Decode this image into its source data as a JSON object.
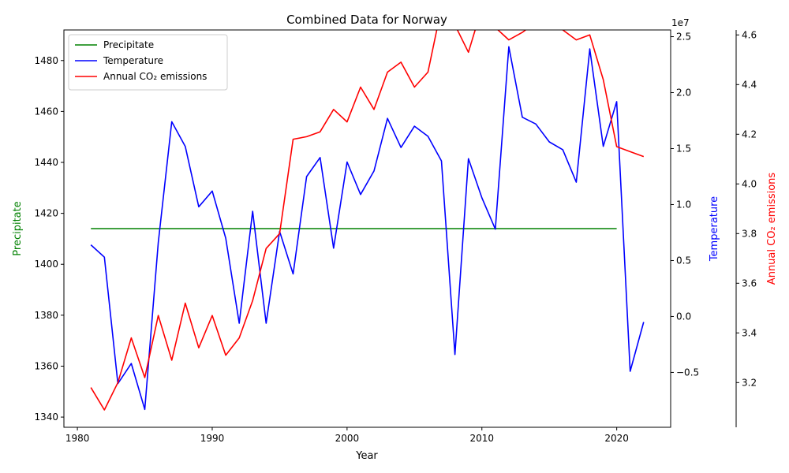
{
  "chart_data": {
    "type": "line",
    "title": "Combined Data for Norway",
    "xlabel": "Year",
    "xlim": [
      1979,
      2024
    ],
    "x_ticks": [
      1980,
      1990,
      2000,
      2010,
      2020
    ],
    "axes": {
      "precipitate": {
        "label": "Precipitate",
        "color": "#008000",
        "ylim": [
          1336,
          1492
        ],
        "ticks": [
          1340,
          1360,
          1380,
          1400,
          1420,
          1440,
          1460,
          1480
        ]
      },
      "temperature": {
        "label": "Temperature",
        "color": "#0000ff",
        "ylim": [
          -0.99,
          2.56
        ],
        "ticks": [
          -0.5,
          0.0,
          0.5,
          1.0,
          1.5,
          2.0,
          2.5
        ],
        "tick_labels": [
          "−0.5",
          "0.0",
          "0.5",
          "1.0",
          "1.5",
          "2.0",
          "2.5"
        ],
        "offset_text": "1e7"
      },
      "co2": {
        "label": "Annual CO₂ emissions",
        "color": "#ff0000",
        "ylim": [
          3.02,
          4.62
        ],
        "ticks": [
          3.2,
          3.4,
          3.6,
          3.8,
          4.0,
          4.2,
          4.4,
          4.6
        ]
      }
    },
    "legend_position": "top-left",
    "series": [
      {
        "name": "Precipitate",
        "axis": "precipitate",
        "x": [
          1981,
          1982,
          1983,
          1984,
          1985,
          1986,
          1987,
          1988,
          1989,
          1990,
          1991,
          1992,
          1993,
          1994,
          1995,
          1996,
          1997,
          1998,
          1999,
          2000,
          2001,
          2002,
          2003,
          2004,
          2005,
          2006,
          2007,
          2008,
          2009,
          2010,
          2011,
          2012,
          2013,
          2014,
          2015,
          2016,
          2017,
          2018,
          2019,
          2020
        ],
        "y": [
          1414,
          1414,
          1414,
          1414,
          1414,
          1414,
          1414,
          1414,
          1414,
          1414,
          1414,
          1414,
          1414,
          1414,
          1414,
          1414,
          1414,
          1414,
          1414,
          1414,
          1414,
          1414,
          1414,
          1414,
          1414,
          1414,
          1414,
          1414,
          1414,
          1414,
          1414,
          1414,
          1414,
          1414,
          1414,
          1414,
          1414,
          1414,
          1414,
          1414
        ]
      },
      {
        "name": "Temperature",
        "axis": "temperature",
        "x": [
          1981,
          1982,
          1983,
          1984,
          1985,
          1986,
          1987,
          1988,
          1989,
          1990,
          1991,
          1992,
          1993,
          1994,
          1995,
          1996,
          1997,
          1998,
          1999,
          2000,
          2001,
          2002,
          2003,
          2004,
          2005,
          2006,
          2007,
          2008,
          2009,
          2010,
          2011,
          2012,
          2013,
          2014,
          2015,
          2016,
          2017,
          2018,
          2019,
          2020,
          2021,
          2022
        ],
        "y": [
          0.64,
          0.53,
          -0.6,
          -0.42,
          -0.83,
          0.66,
          1.74,
          1.52,
          0.98,
          1.12,
          0.7,
          -0.06,
          0.94,
          -0.06,
          0.76,
          0.38,
          1.25,
          1.42,
          0.61,
          1.38,
          1.09,
          1.3,
          1.77,
          1.51,
          1.7,
          1.61,
          1.39,
          -0.34,
          1.41,
          1.06,
          0.78,
          2.41,
          1.78,
          1.72,
          1.56,
          1.49,
          1.2,
          2.39,
          1.52,
          1.92,
          -0.49,
          -0.05
        ]
      },
      {
        "name": "Annual CO₂ emissions",
        "axis": "co2",
        "x": [
          1981,
          1982,
          1983,
          1984,
          1985,
          1986,
          1987,
          1988,
          1989,
          1990,
          1991,
          1992,
          1993,
          1994,
          1995,
          1996,
          1997,
          1998,
          1999,
          2000,
          2001,
          2002,
          2003,
          2004,
          2005,
          2006,
          2007,
          2008,
          2009,
          2010,
          2011,
          2012,
          2013,
          2014,
          2015,
          2016,
          2017,
          2018,
          2019,
          2020,
          2021,
          2022
        ],
        "y": [
          3.18,
          3.09,
          3.2,
          3.38,
          3.22,
          3.47,
          3.29,
          3.52,
          3.34,
          3.47,
          3.31,
          3.38,
          3.53,
          3.74,
          3.8,
          4.18,
          4.19,
          4.21,
          4.3,
          4.25,
          4.39,
          4.3,
          4.45,
          4.49,
          4.39,
          4.45,
          4.71,
          4.64,
          4.53,
          4.71,
          4.63,
          4.58,
          4.61,
          4.65,
          4.69,
          4.62,
          4.58,
          4.6,
          4.42,
          4.15,
          4.13,
          4.11
        ]
      }
    ]
  }
}
